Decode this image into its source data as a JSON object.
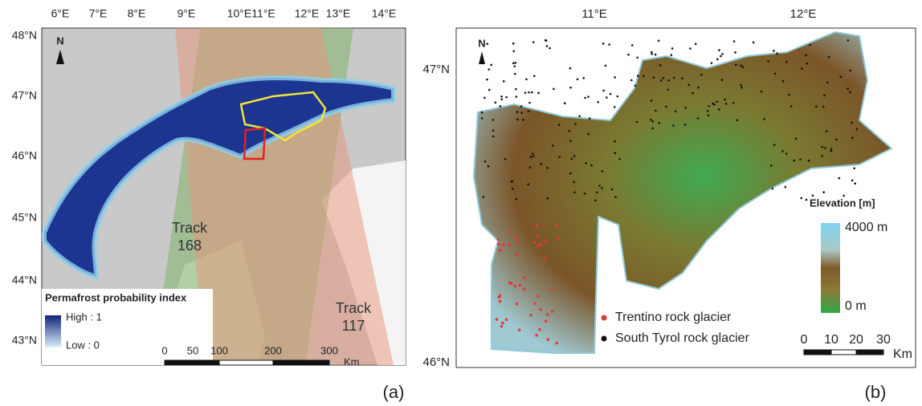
{
  "panel_a": {
    "lon_labels": [
      "6°E",
      "7°E",
      "8°E",
      "9°E",
      "10°E",
      "11°E",
      "12°E",
      "13°E",
      "14°E"
    ],
    "lat_labels": [
      "48°N",
      "47°N",
      "46°N",
      "45°N",
      "44°N",
      "43°N"
    ],
    "north": "N",
    "tracks": [
      {
        "lines": [
          "Track",
          "168"
        ]
      },
      {
        "lines": [
          "Track",
          "117"
        ]
      }
    ],
    "legend_title": "Permafrost probability index",
    "legend_high": "High : 1",
    "legend_low": "Low : 0",
    "scale_ticks": [
      "0",
      "50",
      "100",
      "200",
      "300"
    ],
    "scale_unit": "Km",
    "label": "(a)"
  },
  "panel_b": {
    "lon_labels": [
      "11°E",
      "12°E"
    ],
    "lat_labels": [
      "47°N",
      "46°N"
    ],
    "north": "N",
    "elevation_title": "Elevation [m]",
    "elevation_max": "4000 m",
    "elevation_min": "0 m",
    "legend": [
      "Trentino rock glacier",
      "South Tyrol rock glacier"
    ],
    "scale_ticks": [
      "0",
      "10",
      "20",
      "30"
    ],
    "scale_unit": "Km",
    "label": "(b)"
  }
}
